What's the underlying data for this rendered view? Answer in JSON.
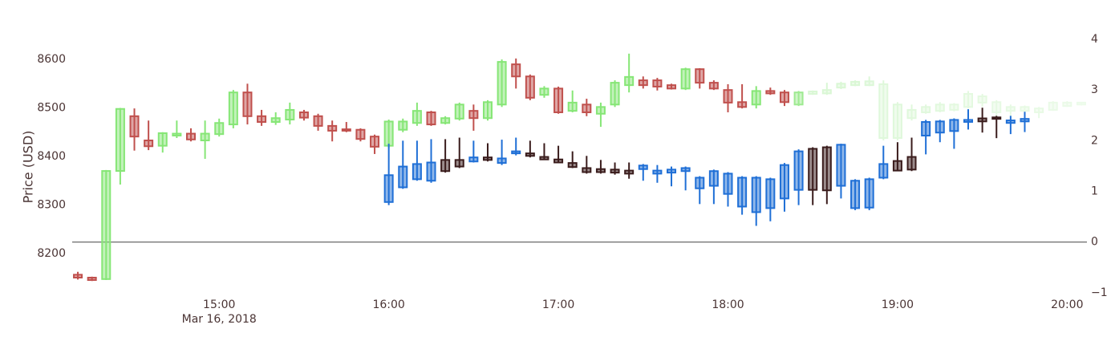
{
  "chart_data": {
    "type": "candlestick",
    "ylabel": "Price (USD)",
    "date_label": "Mar 16, 2018",
    "xlim": [
      "2018-03-16 14:08",
      "2018-03-16 20:07"
    ],
    "xticks": [
      {
        "value": "2018-03-16 15:00",
        "label": "15:00"
      },
      {
        "value": "2018-03-16 16:00",
        "label": "16:00"
      },
      {
        "value": "2018-03-16 17:00",
        "label": "17:00"
      },
      {
        "value": "2018-03-16 18:00",
        "label": "18:00"
      },
      {
        "value": "2018-03-16 19:00",
        "label": "19:00"
      },
      {
        "value": "2018-03-16 20:00",
        "label": "20:00"
      }
    ],
    "ylim": [
      8102,
      8673
    ],
    "yticks": [
      8200,
      8300,
      8400,
      8500,
      8600
    ],
    "y2lim": [
      -1.16,
      4.3
    ],
    "y2ticks": [
      {
        "value": -1,
        "label": "−1"
      },
      0,
      1,
      2,
      3,
      4
    ],
    "y2_zeroline": true,
    "series": [
      {
        "axis": "y",
        "increasing_color": "#86e676",
        "decreasing_color": "#c0504d",
        "x": [
          "2018-03-16 14:10",
          "2018-03-16 14:15",
          "2018-03-16 14:20",
          "2018-03-16 14:25",
          "2018-03-16 14:30",
          "2018-03-16 14:35",
          "2018-03-16 14:40",
          "2018-03-16 14:45",
          "2018-03-16 14:50",
          "2018-03-16 14:55",
          "2018-03-16 15:00",
          "2018-03-16 15:05",
          "2018-03-16 15:10",
          "2018-03-16 15:15",
          "2018-03-16 15:20",
          "2018-03-16 15:25",
          "2018-03-16 15:30",
          "2018-03-16 15:35",
          "2018-03-16 15:40",
          "2018-03-16 15:45",
          "2018-03-16 15:50",
          "2018-03-16 15:55",
          "2018-03-16 16:00",
          "2018-03-16 16:05",
          "2018-03-16 16:10",
          "2018-03-16 16:15",
          "2018-03-16 16:20",
          "2018-03-16 16:25",
          "2018-03-16 16:30",
          "2018-03-16 16:35",
          "2018-03-16 16:40",
          "2018-03-16 16:45",
          "2018-03-16 16:50",
          "2018-03-16 16:55",
          "2018-03-16 17:00",
          "2018-03-16 17:05",
          "2018-03-16 17:10",
          "2018-03-16 17:15",
          "2018-03-16 17:20",
          "2018-03-16 17:25",
          "2018-03-16 17:30",
          "2018-03-16 17:35",
          "2018-03-16 17:40",
          "2018-03-16 17:45",
          "2018-03-16 17:50",
          "2018-03-16 17:55",
          "2018-03-16 18:00",
          "2018-03-16 18:05",
          "2018-03-16 18:10",
          "2018-03-16 18:15",
          "2018-03-16 18:20",
          "2018-03-16 18:25",
          "2018-03-16 18:30",
          "2018-03-16 18:35",
          "2018-03-16 18:40",
          "2018-03-16 18:45",
          "2018-03-16 18:50",
          "2018-03-16 18:55",
          "2018-03-16 19:00",
          "2018-03-16 19:05",
          "2018-03-16 19:10",
          "2018-03-16 19:15",
          "2018-03-16 19:20",
          "2018-03-16 19:25",
          "2018-03-16 19:30",
          "2018-03-16 19:35",
          "2018-03-16 19:40",
          "2018-03-16 19:45",
          "2018-03-16 19:50",
          "2018-03-16 19:55",
          "2018-03-16 20:00",
          "2018-03-16 20:05"
        ],
        "open": [
          8156,
          8150,
          8147,
          8370,
          8483,
          8433,
          8422,
          8443,
          8447,
          8433,
          8446,
          8466,
          8532,
          8483,
          8471,
          8476,
          8491,
          8483,
          8463,
          8456,
          8455,
          8441,
          8422,
          8455,
          8469,
          8491,
          8469,
          8478,
          8494,
          8479,
          8507,
          8590,
          8565,
          8527,
          8540,
          8494,
          8507,
          8488,
          8507,
          8547,
          8557,
          8557,
          8547,
          8540,
          8580,
          8552,
          8537,
          8512,
          8507,
          8535,
          8532,
          8507,
          8529,
          8530,
          8542,
          8547,
          8547,
          8438,
          8438,
          8479,
          8491,
          8494,
          8496,
          8502,
          8511,
          8491,
          8494,
          8494,
          8491,
          8496,
          8504,
          8507
        ],
        "high": [
          8162,
          8152,
          8372,
          8500,
          8499,
          8474,
          8450,
          8474,
          8458,
          8474,
          8478,
          8537,
          8550,
          8496,
          8491,
          8511,
          8496,
          8488,
          8474,
          8471,
          8458,
          8445,
          8476,
          8478,
          8511,
          8494,
          8483,
          8511,
          8507,
          8516,
          8600,
          8602,
          8569,
          8545,
          8544,
          8536,
          8519,
          8511,
          8557,
          8612,
          8565,
          8562,
          8550,
          8583,
          8582,
          8557,
          8549,
          8549,
          8545,
          8542,
          8537,
          8535,
          8536,
          8552,
          8554,
          8557,
          8565,
          8557,
          8512,
          8507,
          8507,
          8512,
          8510,
          8535,
          8529,
          8516,
          8507,
          8505,
          8502,
          8514,
          8514,
          8512
        ],
        "low": [
          8146,
          8143,
          8145,
          8342,
          8412,
          8413,
          8408,
          8438,
          8431,
          8395,
          8441,
          8458,
          8466,
          8463,
          8465,
          8466,
          8474,
          8453,
          8431,
          8450,
          8431,
          8405,
          8417,
          8450,
          8463,
          8463,
          8466,
          8474,
          8453,
          8474,
          8502,
          8540,
          8516,
          8521,
          8488,
          8491,
          8483,
          8461,
          8502,
          8532,
          8540,
          8536,
          8538,
          8537,
          8540,
          8537,
          8491,
          8499,
          8499,
          8527,
          8504,
          8504,
          8527,
          8527,
          8539,
          8545,
          8545,
          8433,
          8433,
          8474,
          8488,
          8491,
          8493,
          8499,
          8502,
          8483,
          8483,
          8491,
          8479,
          8494,
          8502,
          8505
        ],
        "close": [
          8150,
          8145,
          8370,
          8498,
          8441,
          8421,
          8448,
          8447,
          8435,
          8447,
          8469,
          8532,
          8483,
          8471,
          8479,
          8496,
          8480,
          8463,
          8453,
          8453,
          8436,
          8420,
          8472,
          8472,
          8494,
          8466,
          8479,
          8507,
          8479,
          8512,
          8595,
          8565,
          8521,
          8540,
          8491,
          8511,
          8491,
          8502,
          8552,
          8564,
          8547,
          8544,
          8540,
          8580,
          8552,
          8540,
          8511,
          8502,
          8535,
          8530,
          8512,
          8532,
          8534,
          8537,
          8550,
          8554,
          8555,
          8549,
          8507,
          8496,
          8502,
          8507,
          8507,
          8529,
          8524,
          8512,
          8502,
          8502,
          8499,
          8511,
          8511,
          8511
        ],
        "opacity": [
          1,
          1,
          1,
          1,
          1,
          1,
          1,
          1,
          1,
          1,
          1,
          1,
          1,
          1,
          1,
          1,
          1,
          1,
          1,
          1,
          1,
          1,
          1,
          1,
          1,
          1,
          1,
          1,
          1,
          1,
          1,
          1,
          1,
          1,
          1,
          1,
          1,
          1,
          1,
          1,
          1,
          1,
          1,
          1,
          1,
          1,
          1,
          1,
          1,
          1,
          1,
          0.8,
          0.3,
          0.3,
          0.3,
          0.3,
          0.28,
          0.26,
          0.26,
          0.25,
          0.24,
          0.23,
          0.22,
          0.22,
          0.21,
          0.2,
          0.2,
          0.19,
          0.18,
          0.17,
          0.16,
          0.15
        ]
      },
      {
        "axis": "y2",
        "increasing_color": "#1f6fd6",
        "decreasing_color": "#3a1c1c",
        "x": [
          "2018-03-16 16:00",
          "2018-03-16 16:05",
          "2018-03-16 16:10",
          "2018-03-16 16:15",
          "2018-03-16 16:20",
          "2018-03-16 16:25",
          "2018-03-16 16:30",
          "2018-03-16 16:35",
          "2018-03-16 16:40",
          "2018-03-16 16:45",
          "2018-03-16 16:50",
          "2018-03-16 16:55",
          "2018-03-16 17:00",
          "2018-03-16 17:05",
          "2018-03-16 17:10",
          "2018-03-16 17:15",
          "2018-03-16 17:20",
          "2018-03-16 17:25",
          "2018-03-16 17:30",
          "2018-03-16 17:35",
          "2018-03-16 17:40",
          "2018-03-16 17:45",
          "2018-03-16 17:50",
          "2018-03-16 17:55",
          "2018-03-16 18:00",
          "2018-03-16 18:05",
          "2018-03-16 18:10",
          "2018-03-16 18:15",
          "2018-03-16 18:20",
          "2018-03-16 18:25",
          "2018-03-16 18:30",
          "2018-03-16 18:35",
          "2018-03-16 18:40",
          "2018-03-16 18:45",
          "2018-03-16 18:50",
          "2018-03-16 18:55",
          "2018-03-16 19:00",
          "2018-03-16 19:05",
          "2018-03-16 19:10",
          "2018-03-16 19:15",
          "2018-03-16 19:20",
          "2018-03-16 19:25",
          "2018-03-16 19:30",
          "2018-03-16 19:35",
          "2018-03-16 19:40",
          "2018-03-16 19:45"
        ],
        "open": [
          0.79,
          1.08,
          1.24,
          1.21,
          1.62,
          1.62,
          1.59,
          1.67,
          1.56,
          1.75,
          1.75,
          1.68,
          1.63,
          1.56,
          1.46,
          1.44,
          1.43,
          1.41,
          1.44,
          1.35,
          1.37,
          1.4,
          1.06,
          1.11,
          0.95,
          0.7,
          0.59,
          0.67,
          0.86,
          1.03,
          1.84,
          1.87,
          1.11,
          0.67,
          0.68,
          1.27,
          1.6,
          1.68,
          2.1,
          2.16,
          2.19,
          2.37,
          2.44,
          2.46,
          2.35,
          2.38
        ],
        "high": [
          1.94,
          2.0,
          2.0,
          2.03,
          2.03,
          2.06,
          2.0,
          1.95,
          2.02,
          2.06,
          2.0,
          1.95,
          1.9,
          1.79,
          1.7,
          1.62,
          1.57,
          1.57,
          1.54,
          1.52,
          1.49,
          1.49,
          1.3,
          1.43,
          1.38,
          1.3,
          1.3,
          1.27,
          1.56,
          1.83,
          1.87,
          1.9,
          1.94,
          1.24,
          1.27,
          1.9,
          1.97,
          2.06,
          2.41,
          2.41,
          2.44,
          2.62,
          2.65,
          2.49,
          2.49,
          2.57
        ],
        "low": [
          0.73,
          1.05,
          1.21,
          1.17,
          1.37,
          1.46,
          1.57,
          1.59,
          1.52,
          1.71,
          1.67,
          1.62,
          1.56,
          1.46,
          1.35,
          1.35,
          1.33,
          1.25,
          1.21,
          1.17,
          1.1,
          1.02,
          0.75,
          0.75,
          0.7,
          0.54,
          0.32,
          0.41,
          0.6,
          0.73,
          0.73,
          0.75,
          0.86,
          0.63,
          0.63,
          1.24,
          1.4,
          1.4,
          1.73,
          1.97,
          1.84,
          2.22,
          2.16,
          2.05,
          2.13,
          2.17
        ],
        "close": [
          1.32,
          1.49,
          1.54,
          1.57,
          1.4,
          1.49,
          1.67,
          1.62,
          1.65,
          1.79,
          1.7,
          1.63,
          1.57,
          1.48,
          1.38,
          1.38,
          1.37,
          1.35,
          1.51,
          1.41,
          1.43,
          1.46,
          1.27,
          1.4,
          1.35,
          1.27,
          1.27,
          1.24,
          1.52,
          1.79,
          1.03,
          1.02,
          1.92,
          1.21,
          1.24,
          1.54,
          1.41,
          1.43,
          2.37,
          2.38,
          2.41,
          2.41,
          2.38,
          2.43,
          2.4,
          2.43
        ]
      }
    ]
  }
}
